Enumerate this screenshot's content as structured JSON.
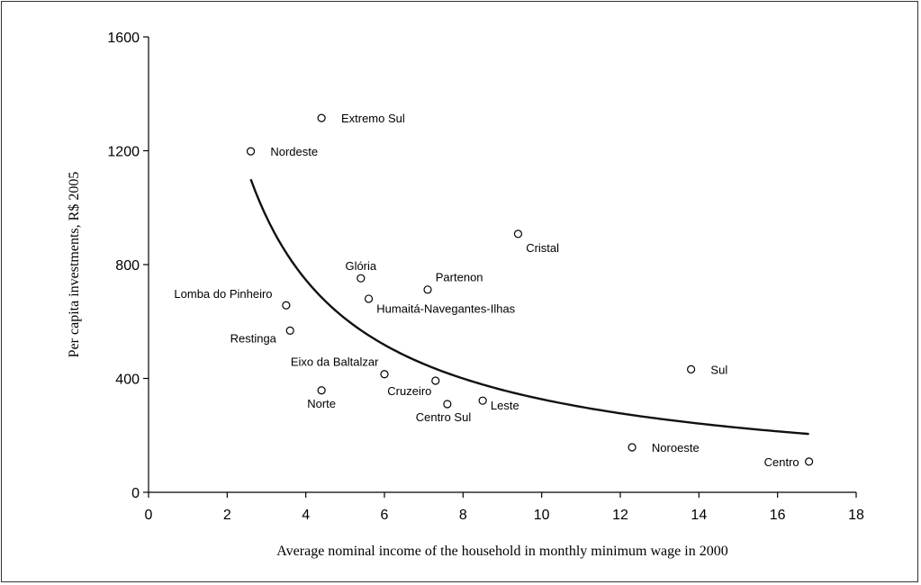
{
  "chart_data": {
    "type": "scatter",
    "title": "",
    "xlabel": "Average nominal income of the household in monthly minimum wage in 2000",
    "ylabel": "Per capita investments, R$ 2005",
    "xlim": [
      0,
      18
    ],
    "ylim": [
      0,
      1600
    ],
    "xticks": [
      0,
      2,
      4,
      6,
      8,
      10,
      12,
      14,
      16,
      18
    ],
    "yticks": [
      0,
      400,
      800,
      1200,
      1600
    ],
    "grid": false,
    "legend": "none",
    "points": [
      {
        "label": "Extremo Sul",
        "x": 4.4,
        "y": 1315,
        "lx": 0.5,
        "ly": 0,
        "anchor": "start"
      },
      {
        "label": "Nordeste",
        "x": 2.6,
        "y": 1198,
        "lx": 0.5,
        "ly": 0,
        "anchor": "start"
      },
      {
        "label": "Cristal",
        "x": 9.4,
        "y": 908,
        "lx": 0.2,
        "ly": -48,
        "anchor": "start"
      },
      {
        "label": "Glória",
        "x": 5.4,
        "y": 752,
        "lx": 0,
        "ly": 45,
        "anchor": "middle"
      },
      {
        "label": "Partenon",
        "x": 7.1,
        "y": 712,
        "lx": 0.2,
        "ly": 45,
        "anchor": "start"
      },
      {
        "label": "Humaitá-Navegantes-Ilhas",
        "x": 5.6,
        "y": 680,
        "lx": 0.2,
        "ly": -33,
        "anchor": "start"
      },
      {
        "label": "Lomba do Pinheiro",
        "x": 3.5,
        "y": 657,
        "lx": -0.35,
        "ly": 42,
        "anchor": "end"
      },
      {
        "label": "Restinga",
        "x": 3.6,
        "y": 568,
        "lx": -0.35,
        "ly": -25,
        "anchor": "end"
      },
      {
        "label": "Sul",
        "x": 13.8,
        "y": 432,
        "lx": 0.5,
        "ly": 0,
        "anchor": "start"
      },
      {
        "label": "Eixo da Baltalzar",
        "x": 6.0,
        "y": 415,
        "lx": -0.15,
        "ly": 45,
        "anchor": "end"
      },
      {
        "label": "Cruzeiro",
        "x": 7.3,
        "y": 392,
        "lx": -0.1,
        "ly": -35,
        "anchor": "end"
      },
      {
        "label": "Norte",
        "x": 4.4,
        "y": 358,
        "lx": 0,
        "ly": -45,
        "anchor": "middle"
      },
      {
        "label": "Leste",
        "x": 8.5,
        "y": 322,
        "lx": 0.2,
        "ly": -15,
        "anchor": "start"
      },
      {
        "label": "Centro Sul",
        "x": 7.6,
        "y": 310,
        "lx": -0.1,
        "ly": -45,
        "anchor": "middle"
      },
      {
        "label": "Noroeste",
        "x": 12.3,
        "y": 158,
        "lx": 0.5,
        "ly": 0,
        "anchor": "start"
      },
      {
        "label": "Centro",
        "x": 16.8,
        "y": 108,
        "lx": -0.25,
        "ly": 0,
        "anchor": "end"
      }
    ],
    "trendline": {
      "type": "power",
      "x_start": 2.6,
      "x_end": 16.8,
      "y_start": 1100,
      "y_end": 205
    }
  },
  "colors": {
    "axis": "#000000",
    "marker_stroke": "#000000",
    "curve": "#111111"
  }
}
